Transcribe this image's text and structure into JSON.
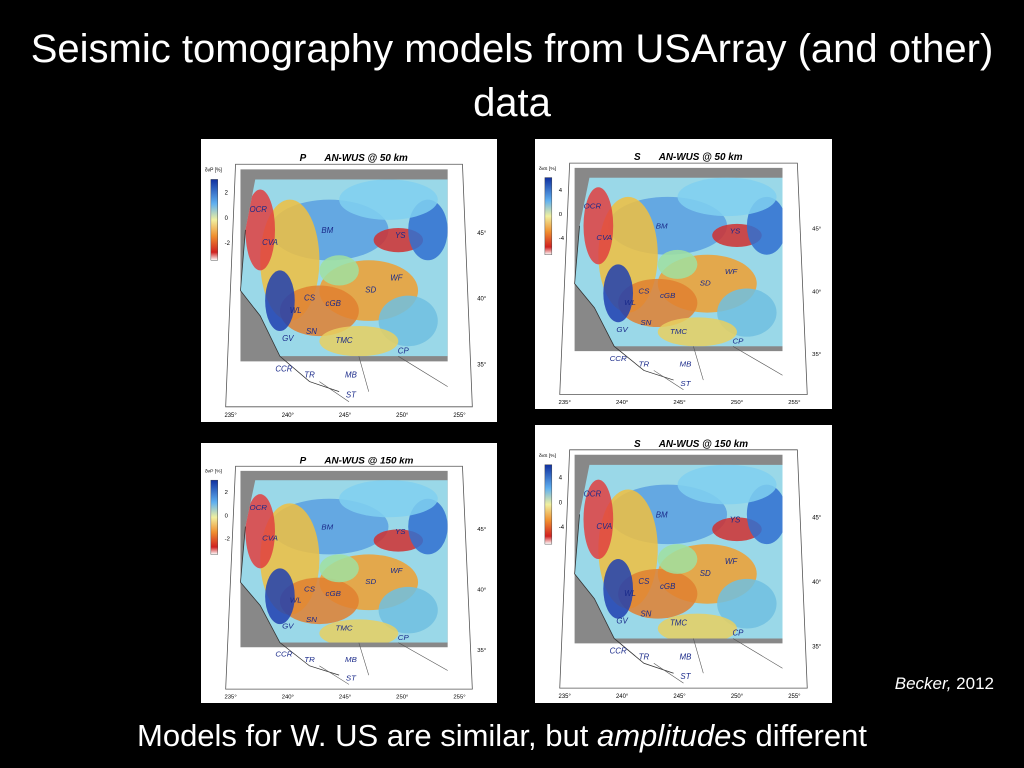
{
  "slide": {
    "title": "Seismic tomography models from USArray (and other)  data",
    "panels": [
      {
        "wave": "P",
        "title": "AN-WUS @ 50 km",
        "colorbar_label": "δvP [%]",
        "colorbar_ticks": [
          "2",
          "0",
          "-2"
        ],
        "lon_ticks": [
          "235°",
          "240°",
          "245°",
          "250°",
          "255°"
        ],
        "lat_ticks": [
          "45°",
          "40°",
          "35°"
        ],
        "regions": [
          "OCR",
          "CVA",
          "BM",
          "YS",
          "WF",
          "CS",
          "cGB",
          "SD",
          "WL",
          "SN",
          "GV",
          "TMC",
          "CP",
          "CCR",
          "TR",
          "MB",
          "ST"
        ]
      },
      {
        "wave": "S",
        "title": "AN-WUS @ 50 km",
        "colorbar_label": "δvS [%]",
        "colorbar_ticks": [
          "4",
          "0",
          "-4"
        ],
        "lon_ticks": [
          "235°",
          "240°",
          "245°",
          "250°",
          "255°"
        ],
        "lat_ticks": [
          "45°",
          "40°",
          "35°"
        ],
        "regions": [
          "OCR",
          "CVA",
          "BM",
          "YS",
          "WF",
          "CS",
          "cGB",
          "SD",
          "WL",
          "SN",
          "GV",
          "TMC",
          "CP",
          "CCR",
          "TR",
          "MB",
          "ST"
        ]
      },
      {
        "wave": "P",
        "title": "AN-WUS @ 150 km",
        "colorbar_label": "δvP [%]",
        "colorbar_ticks": [
          "2",
          "0",
          "-2"
        ],
        "lon_ticks": [
          "235°",
          "240°",
          "245°",
          "250°",
          "255°"
        ],
        "lat_ticks": [
          "45°",
          "40°",
          "35°"
        ],
        "regions": [
          "OCR",
          "CVA",
          "BM",
          "YS",
          "WF",
          "CS",
          "cGB",
          "SD",
          "WL",
          "SN",
          "GV",
          "TMC",
          "CP",
          "CCR",
          "TR",
          "MB",
          "ST"
        ]
      },
      {
        "wave": "S",
        "title": "AN-WUS @ 150 km",
        "colorbar_label": "δvS [%]",
        "colorbar_ticks": [
          "4",
          "0",
          "-4"
        ],
        "lon_ticks": [
          "235°",
          "240°",
          "245°",
          "250°",
          "255°"
        ],
        "lat_ticks": [
          "45°",
          "40°",
          "35°"
        ],
        "regions": [
          "OCR",
          "CVA",
          "BM",
          "YS",
          "WF",
          "CS",
          "cGB",
          "SD",
          "WL",
          "SN",
          "GV",
          "TMC",
          "CP",
          "CCR",
          "TR",
          "MB",
          "ST"
        ]
      }
    ],
    "citation": {
      "author": "Becker,",
      "year": "2012"
    },
    "caption": {
      "before": "Models for W. US are similar, but ",
      "emphasis": "amplitudes",
      "after": " different"
    }
  }
}
